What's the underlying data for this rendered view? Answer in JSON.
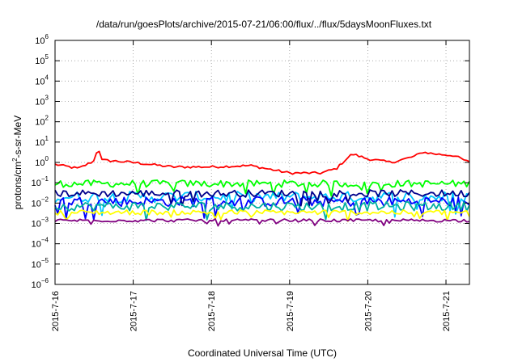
{
  "chart_data": {
    "type": "line",
    "title": "/data/run/goesPlots/archive/2015-07-21/06:00/flux/../flux/5daysMoonFluxes.txt",
    "xlabel": "Coordinated Universal Time (UTC)",
    "ylabel_parts": [
      "protons/cm",
      "2",
      "-s-sr-MeV"
    ],
    "y_scale": "log",
    "ylim": [
      1e-06,
      1000000.0
    ],
    "y_tick_exponents": [
      -6,
      -5,
      -4,
      -3,
      -2,
      -1,
      0,
      1,
      2,
      3,
      4,
      5,
      6
    ],
    "y_tick_base": "10",
    "x_range_days": [
      0,
      5.3
    ],
    "x_tick_labels": [
      "2015-7-16",
      "2015-7-17",
      "2015-7-18",
      "2015-7-19",
      "2015-7-20",
      "2015-7-21"
    ],
    "grid": true,
    "series": [
      {
        "color": "#ff0000",
        "level": 0.6,
        "noise": 0.12,
        "profile": [
          [
            0,
            0.8
          ],
          [
            0.3,
            0.5
          ],
          [
            0.5,
            1.2
          ],
          [
            0.55,
            6
          ],
          [
            0.6,
            1.3
          ],
          [
            1.0,
            1.0
          ],
          [
            1.5,
            0.6
          ],
          [
            2.0,
            0.6
          ],
          [
            2.5,
            0.7
          ],
          [
            3.0,
            0.3
          ],
          [
            3.4,
            0.3
          ],
          [
            3.6,
            0.5
          ],
          [
            3.7,
            1.2
          ],
          [
            3.8,
            2.6
          ],
          [
            4.0,
            1.5
          ],
          [
            4.3,
            1.0
          ],
          [
            4.6,
            2.0
          ],
          [
            4.7,
            3.2
          ],
          [
            4.9,
            2.5
          ],
          [
            5.1,
            2.2
          ],
          [
            5.3,
            1.0
          ]
        ]
      },
      {
        "color": "#00ff00",
        "level": 0.09,
        "noise": 0.35
      },
      {
        "color": "#00c8ff",
        "level": 0.02,
        "noise": 0.55
      },
      {
        "color": "#0000ff",
        "level": 0.012,
        "noise": 0.5
      },
      {
        "color": "#00008b",
        "level": 0.03,
        "noise": 0.35
      },
      {
        "color": "#00b0a0",
        "level": 0.007,
        "noise": 0.45
      },
      {
        "color": "#ffff00",
        "level": 0.0035,
        "noise": 0.25
      },
      {
        "color": "#800080",
        "level": 0.0014,
        "noise": 0.15
      }
    ]
  }
}
